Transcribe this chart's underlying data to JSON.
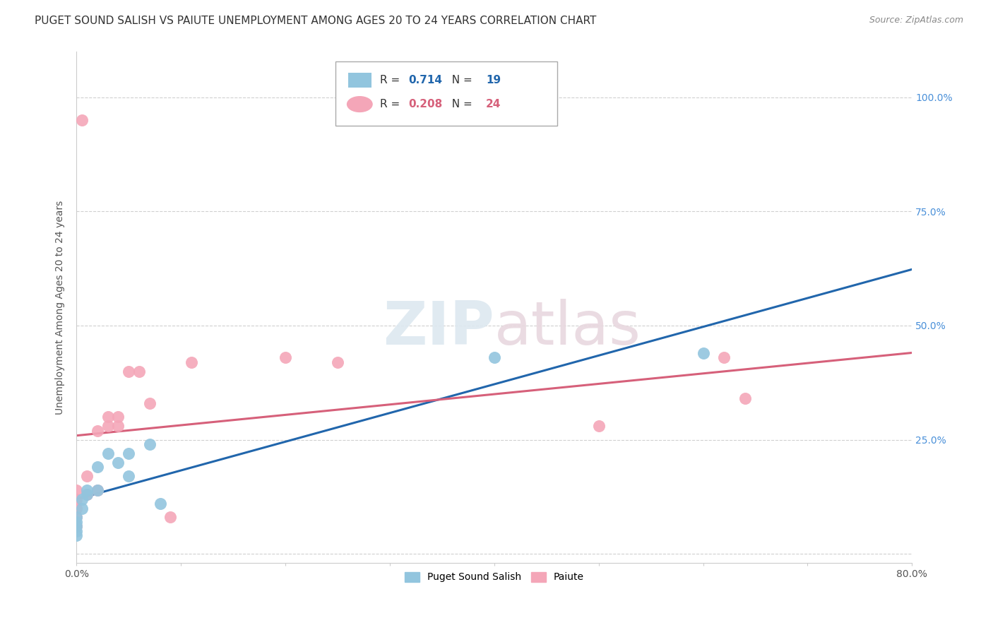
{
  "title": "PUGET SOUND SALISH VS PAIUTE UNEMPLOYMENT AMONG AGES 20 TO 24 YEARS CORRELATION CHART",
  "source": "Source: ZipAtlas.com",
  "ylabel": "Unemployment Among Ages 20 to 24 years",
  "xlim": [
    0.0,
    0.8
  ],
  "ylim": [
    -0.02,
    1.1
  ],
  "xticks": [
    0.0,
    0.1,
    0.2,
    0.3,
    0.4,
    0.5,
    0.6,
    0.7,
    0.8
  ],
  "xticklabels": [
    "0.0%",
    "",
    "",
    "",
    "",
    "",
    "",
    "",
    "80.0%"
  ],
  "yticks": [
    0.0,
    0.25,
    0.5,
    0.75,
    1.0
  ],
  "yticklabels_right": [
    "",
    "25.0%",
    "50.0%",
    "75.0%",
    "100.0%"
  ],
  "legend1_label": "Puget Sound Salish",
  "legend2_label": "Paiute",
  "R_salish": 0.714,
  "N_salish": 19,
  "R_paiute": 0.208,
  "N_paiute": 24,
  "color_salish": "#92c5de",
  "color_paiute": "#f4a6b8",
  "line_color_salish": "#2166ac",
  "line_color_paiute": "#d6607a",
  "salish_x": [
    0.0,
    0.0,
    0.0,
    0.0,
    0.0,
    0.005,
    0.005,
    0.01,
    0.01,
    0.02,
    0.02,
    0.03,
    0.04,
    0.05,
    0.05,
    0.07,
    0.08,
    0.4,
    0.6
  ],
  "salish_y": [
    0.04,
    0.05,
    0.06,
    0.07,
    0.08,
    0.1,
    0.12,
    0.13,
    0.14,
    0.14,
    0.19,
    0.22,
    0.2,
    0.17,
    0.22,
    0.24,
    0.11,
    0.43,
    0.44
  ],
  "paiute_x": [
    0.0,
    0.0,
    0.0,
    0.0,
    0.0,
    0.005,
    0.01,
    0.01,
    0.02,
    0.02,
    0.03,
    0.03,
    0.04,
    0.04,
    0.05,
    0.06,
    0.07,
    0.09,
    0.11,
    0.2,
    0.25,
    0.5,
    0.62,
    0.64
  ],
  "paiute_y": [
    0.06,
    0.08,
    0.1,
    0.12,
    0.14,
    0.95,
    0.13,
    0.17,
    0.14,
    0.27,
    0.28,
    0.3,
    0.3,
    0.28,
    0.4,
    0.4,
    0.33,
    0.08,
    0.42,
    0.43,
    0.42,
    0.28,
    0.43,
    0.34
  ],
  "grid_color": "#d0d0d0",
  "bg_color": "#ffffff",
  "title_fontsize": 11,
  "axis_fontsize": 10,
  "tick_fontsize": 10,
  "watermark_color": "#dde8f0",
  "watermark_color2": "#e8d8df"
}
